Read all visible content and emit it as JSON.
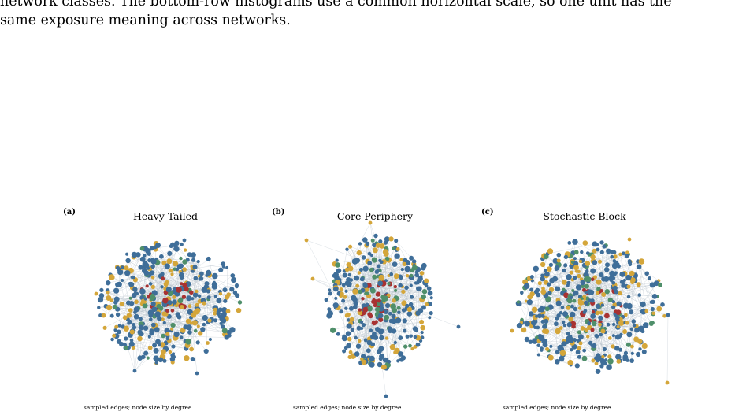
{
  "caption": {
    "line1": "network classes. The bottom-row histograms use a common horizontal scale, so one unit has the",
    "line2": "same exposure meaning across networks."
  },
  "colors": {
    "blue": "#3f6e99",
    "gold": "#d4a63a",
    "green": "#4f8f6a",
    "red": "#a83232",
    "edge": "#b8c2cc"
  },
  "panels": [
    {
      "letter": "(a)",
      "title": "Heavy Tailed",
      "note": "sampled edges; node size by degree"
    },
    {
      "letter": "(b)",
      "title": "Core Periphery",
      "note": "sampled edges; node size by degree"
    },
    {
      "letter": "(c)",
      "title": "Stochastic Block",
      "note": "sampled edges; node size by degree"
    }
  ]
}
